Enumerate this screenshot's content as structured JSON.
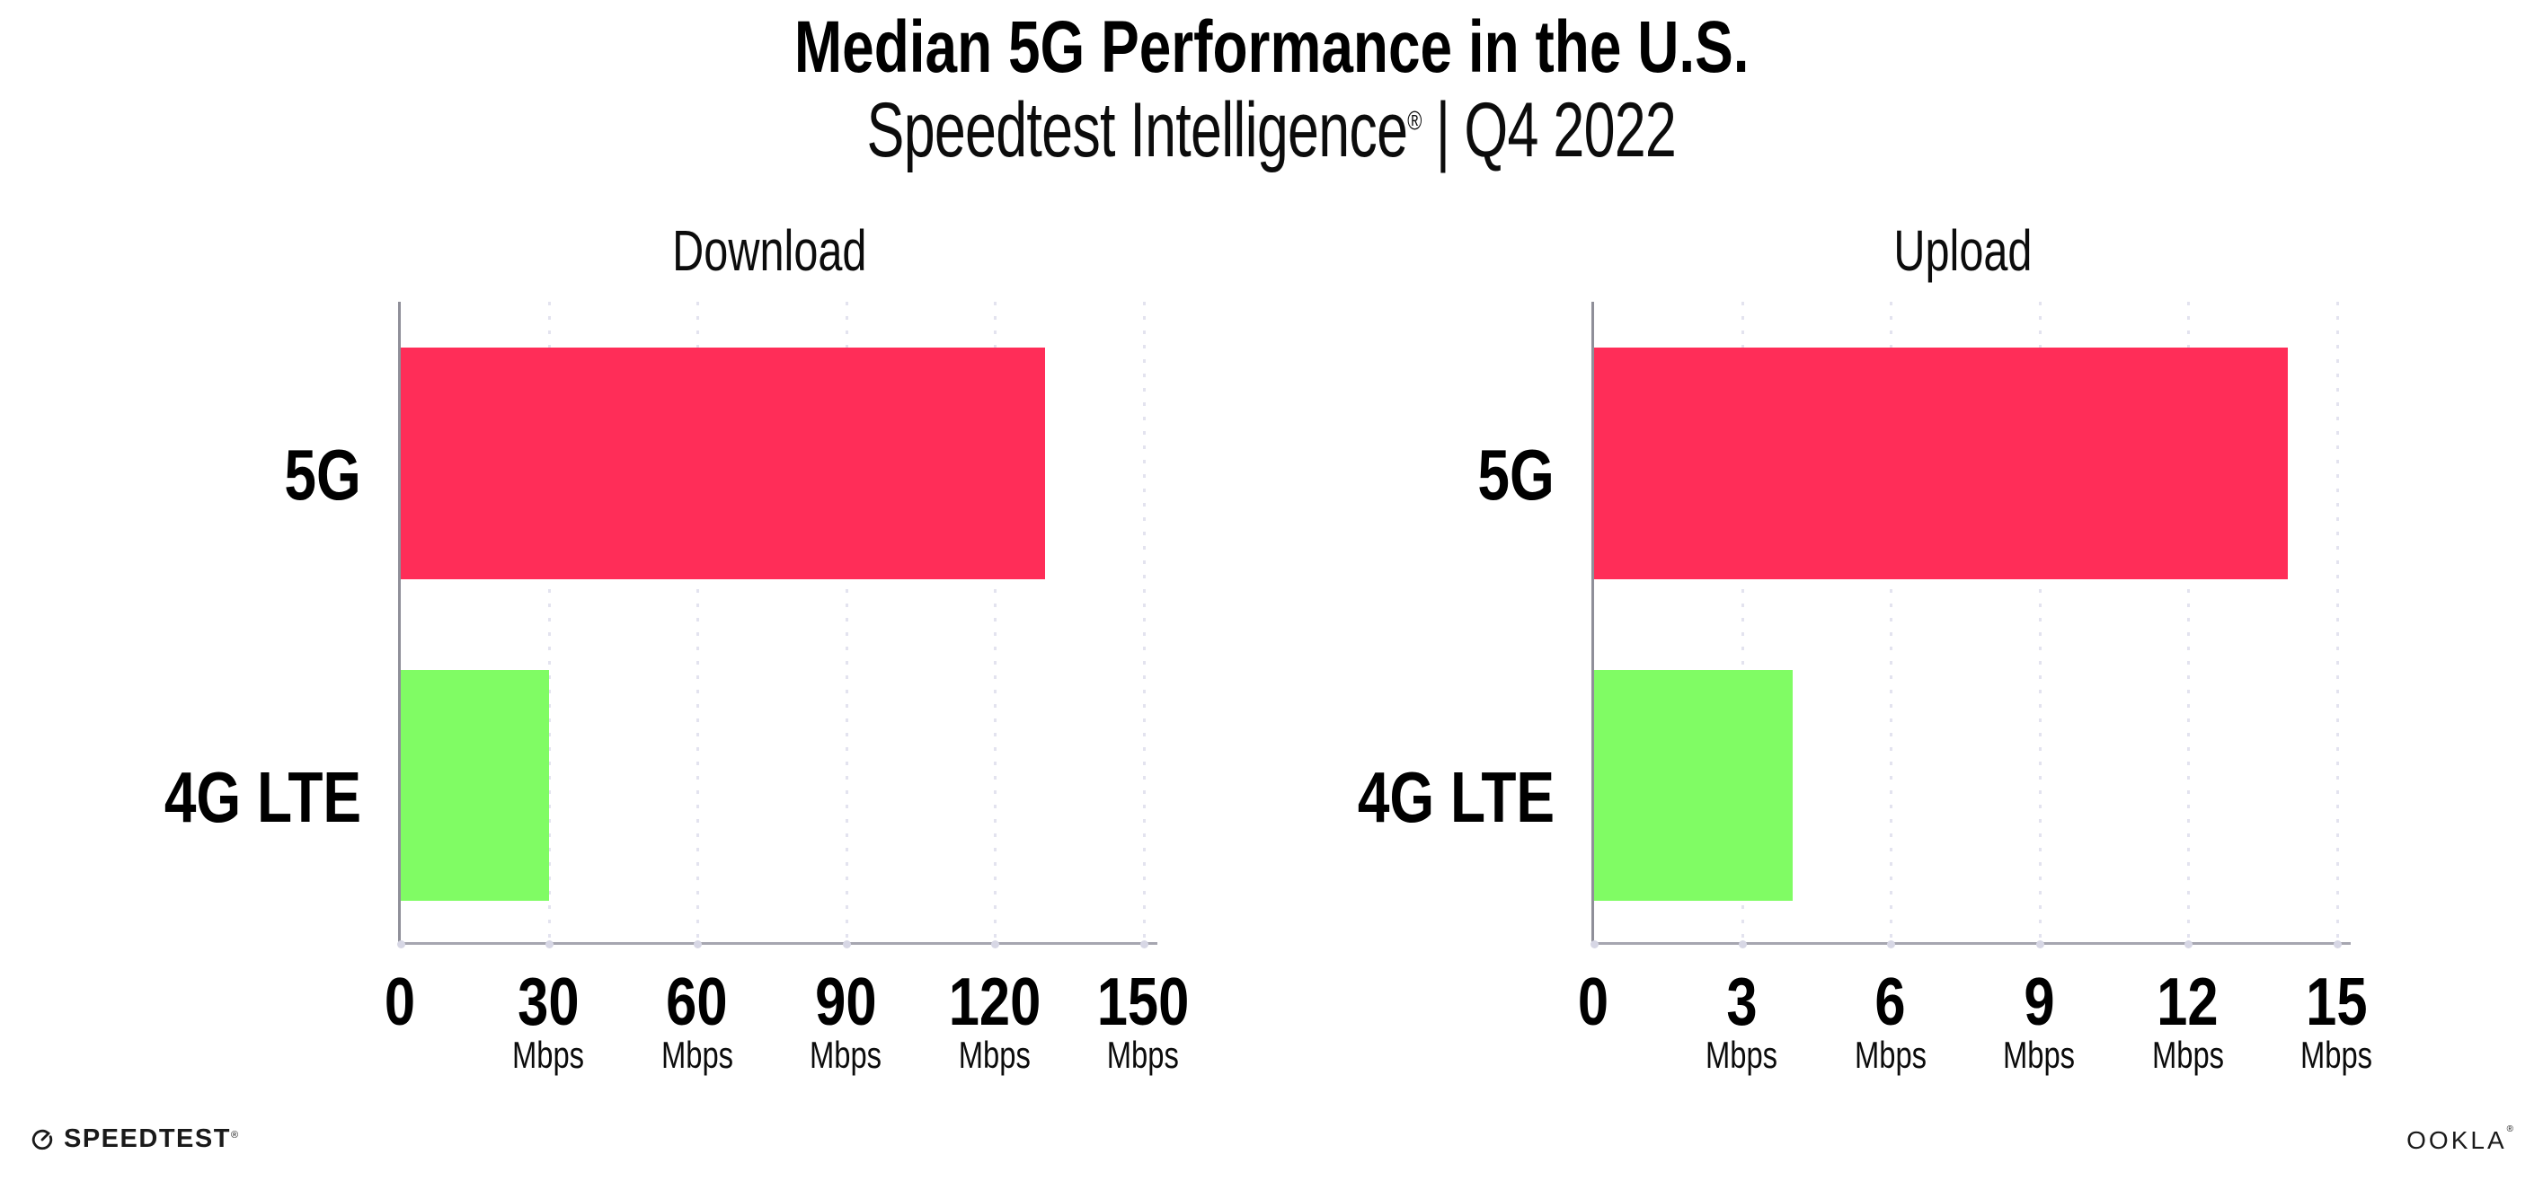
{
  "header": {
    "title": "Median 5G Performance in the U.S.",
    "subtitle_brand": "Speedtest Intelligence",
    "subtitle_registered": "®",
    "subtitle_separator": "|",
    "subtitle_period": "Q4 2022"
  },
  "colors": {
    "bar_5g": "#ff2d58",
    "bar_4g_lte": "#80fc64",
    "gridline": "#e3e3ef",
    "axis": "#a6a6b0",
    "text": "#000000"
  },
  "chart_data": [
    {
      "type": "bar",
      "orientation": "horizontal",
      "title": "Download",
      "categories": [
        "5G",
        "4G LTE"
      ],
      "values": [
        130,
        30
      ],
      "unit": "Mbps",
      "xlim": [
        0,
        150
      ],
      "xticks": [
        0,
        30,
        60,
        90,
        120,
        150
      ],
      "grid": "dotted-vertical",
      "legend": "none",
      "bar_colors": [
        "#ff2d58",
        "#80fc64"
      ]
    },
    {
      "type": "bar",
      "orientation": "horizontal",
      "title": "Upload",
      "categories": [
        "5G",
        "4G LTE"
      ],
      "values": [
        14,
        4
      ],
      "unit": "Mbps",
      "xlim": [
        0,
        15
      ],
      "xticks": [
        0,
        3,
        6,
        9,
        12,
        15
      ],
      "grid": "dotted-vertical",
      "legend": "none",
      "bar_colors": [
        "#ff2d58",
        "#80fc64"
      ]
    }
  ],
  "footer": {
    "speedtest_label": "SPEEDTEST",
    "speedtest_mark": "®",
    "ookla_label": "OOKLA",
    "ookla_mark": "®"
  }
}
